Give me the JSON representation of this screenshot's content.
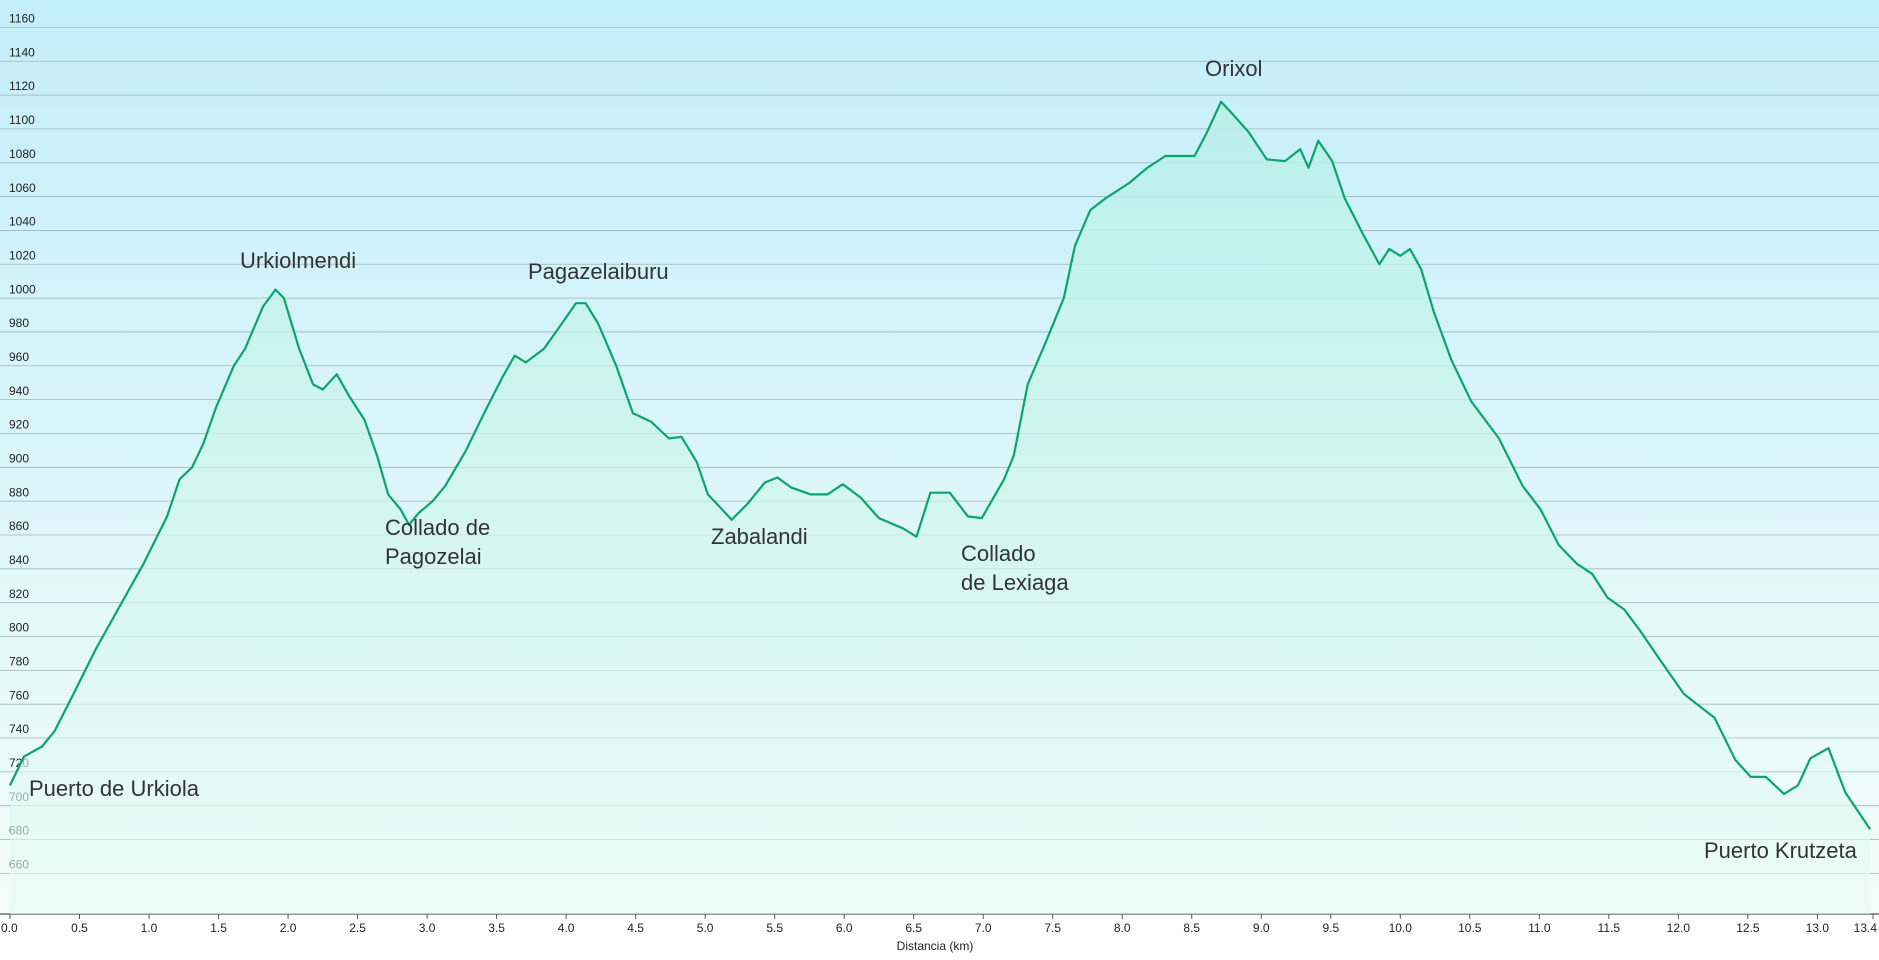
{
  "chart_data": {
    "type": "line",
    "xlabel": "Distancia  (km)",
    "color": "#0aa56e",
    "grid": true,
    "xlim": [
      0,
      13.4
    ],
    "ylim": [
      636,
      1175
    ],
    "xticks": [
      {
        "value": 0,
        "label": "0.0"
      },
      0.5,
      {
        "value": 1,
        "label": "1.0"
      },
      1.5,
      {
        "value": 2,
        "label": "2.0"
      },
      2.5,
      {
        "value": 3,
        "label": "3.0"
      },
      3.5,
      {
        "value": 4,
        "label": "4.0"
      },
      4.5,
      {
        "value": 5,
        "label": "5.0"
      },
      5.5,
      {
        "value": 6,
        "label": "6.0"
      },
      6.5,
      {
        "value": 7,
        "label": "7.0"
      },
      7.5,
      {
        "value": 8,
        "label": "8.0"
      },
      8.5,
      {
        "value": 9,
        "label": "9.0"
      },
      9.5,
      {
        "value": 10,
        "label": "10.0"
      },
      10.5,
      {
        "value": 11,
        "label": "11.0"
      },
      11.5,
      {
        "value": 12,
        "label": "12.0"
      },
      12.5,
      {
        "value": 13,
        "label": "13.0"
      },
      13.4
    ],
    "yticks": [
      660,
      680,
      700,
      720,
      740,
      760,
      780,
      800,
      820,
      840,
      860,
      880,
      900,
      920,
      940,
      960,
      980,
      1000,
      1020,
      1040,
      1060,
      1080,
      1100,
      1120,
      1140,
      1160
    ],
    "x": [
      0,
      0.1,
      0.23,
      0.32,
      0.45,
      0.62,
      0.79,
      0.96,
      1.13,
      1.22,
      1.31,
      1.39,
      1.48,
      1.61,
      1.69,
      1.82,
      1.91,
      1.97,
      2.08,
      2.18,
      2.25,
      2.35,
      2.44,
      2.55,
      2.64,
      2.72,
      2.81,
      2.87,
      2.94,
      3.04,
      3.13,
      3.28,
      3.41,
      3.54,
      3.63,
      3.71,
      3.84,
      3.97,
      4.07,
      4.14,
      4.23,
      4.36,
      4.48,
      4.61,
      4.74,
      4.83,
      4.94,
      5.02,
      5.1,
      5.19,
      5.3,
      5.43,
      5.52,
      5.62,
      5.76,
      5.88,
      5.99,
      6.12,
      6.25,
      6.42,
      6.52,
      6.62,
      6.76,
      6.89,
      6.99,
      7.15,
      7.22,
      7.32,
      7.45,
      7.58,
      7.66,
      7.77,
      7.88,
      8.05,
      8.18,
      8.31,
      8.44,
      8.52,
      8.61,
      8.71,
      8.78,
      8.91,
      9.04,
      9.17,
      9.28,
      9.34,
      9.41,
      9.51,
      9.6,
      9.73,
      9.85,
      9.92,
      10.0,
      10.07,
      10.15,
      10.24,
      10.37,
      10.51,
      10.71,
      10.88,
      11.01,
      11.14,
      11.27,
      11.38,
      11.49,
      11.61,
      11.72,
      11.87,
      12.04,
      12.26,
      12.41,
      12.52,
      12.63,
      12.76,
      12.86,
      12.95,
      13.08,
      13.2,
      13.38
    ],
    "values": [
      712,
      729,
      735,
      744,
      765,
      793,
      818,
      843,
      871,
      893,
      900,
      914,
      935,
      960,
      970,
      995,
      1005,
      1000,
      970,
      949,
      946,
      955,
      942,
      928,
      907,
      884,
      875,
      866,
      873,
      880,
      889,
      910,
      932,
      953,
      966,
      962,
      970,
      985,
      997,
      997,
      985,
      960,
      932,
      927,
      917,
      918,
      903,
      884,
      877,
      869,
      878,
      891,
      894,
      888,
      884,
      884,
      890,
      882,
      870,
      864,
      859,
      885,
      885,
      871,
      870,
      893,
      907,
      949,
      974,
      1000,
      1031,
      1052,
      1059,
      1068,
      1077,
      1084,
      1084,
      1084,
      1098,
      1116,
      1110,
      1098,
      1082,
      1081,
      1088,
      1077,
      1093,
      1081,
      1059,
      1038,
      1020,
      1029,
      1025,
      1029,
      1017,
      992,
      963,
      939,
      917,
      889,
      875,
      854,
      843,
      837,
      823,
      816,
      804,
      786,
      766,
      752,
      727,
      717,
      717,
      707,
      712,
      728,
      734,
      708,
      686
    ],
    "annotations": [
      [
        "Puerto de Urkiola"
      ],
      [
        "Urkiolmendi"
      ],
      [
        "Pagazelaiburu"
      ],
      [
        "Collado de",
        "Pagozelai"
      ],
      [
        "Zabalandi"
      ],
      [
        "Collado",
        "de Lexiaga"
      ],
      [
        "Orixol"
      ],
      [
        "Puerto Krutzeta"
      ]
    ]
  }
}
